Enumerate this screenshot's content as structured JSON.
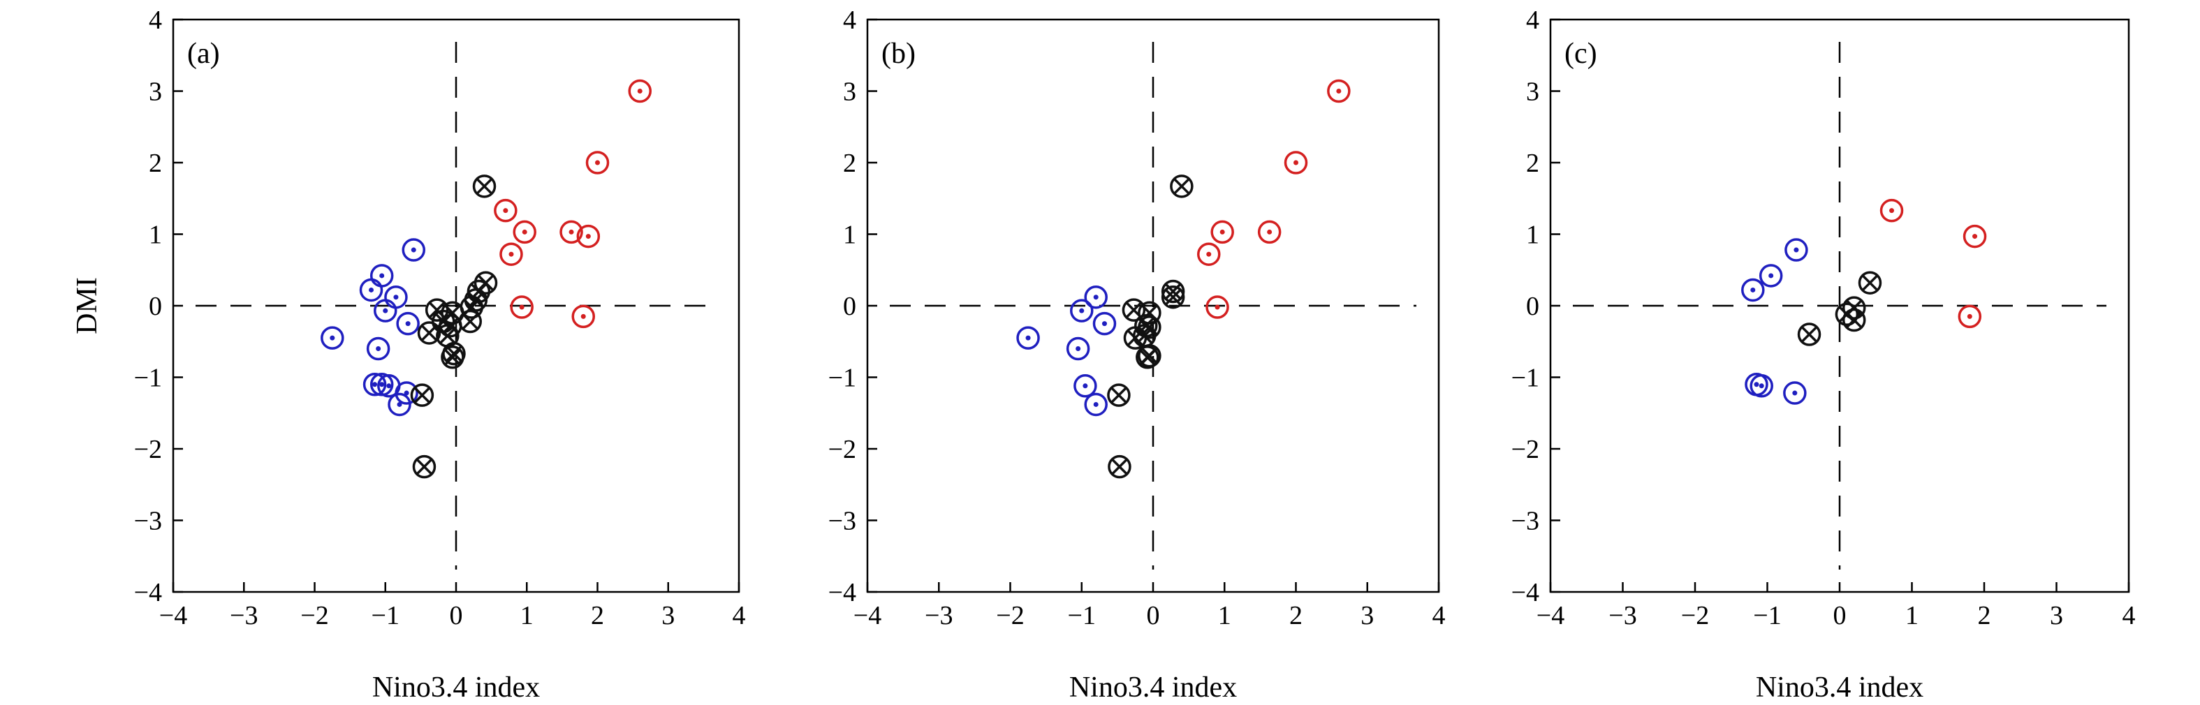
{
  "chart_data": [
    {
      "type": "scatter",
      "panel_label": "(a)",
      "xlabel": "Nino3.4 index",
      "ylabel": "DMI",
      "xlim": [
        -4,
        4
      ],
      "ylim": [
        -4,
        4
      ],
      "xticks": [
        "−4",
        "−3",
        "−2",
        "−1",
        "0",
        "1",
        "2",
        "3",
        "4"
      ],
      "yticks": [
        "−4",
        "−3",
        "−2",
        "−1",
        "0",
        "1",
        "2",
        "3",
        "4"
      ],
      "grid": false,
      "reference_lines": {
        "x": 0,
        "y": 0,
        "style": "dashed"
      },
      "series": [
        {
          "marker": "circle-dot",
          "color": "#d42020",
          "points": [
            [
              2.6,
              3.0
            ],
            [
              2.0,
              2.0
            ],
            [
              0.7,
              1.33
            ],
            [
              0.97,
              1.03
            ],
            [
              1.63,
              1.03
            ],
            [
              1.87,
              0.97
            ],
            [
              0.78,
              0.72
            ],
            [
              0.93,
              -0.02
            ],
            [
              1.8,
              -0.15
            ]
          ]
        },
        {
          "marker": "circle-dot",
          "color": "#1f1fc0",
          "points": [
            [
              -0.6,
              0.78
            ],
            [
              -1.05,
              0.42
            ],
            [
              -1.2,
              0.22
            ],
            [
              -0.85,
              0.12
            ],
            [
              -1.0,
              -0.07
            ],
            [
              -0.68,
              -0.25
            ],
            [
              -1.75,
              -0.45
            ],
            [
              -1.1,
              -0.6
            ],
            [
              -1.15,
              -1.1
            ],
            [
              -1.05,
              -1.1
            ],
            [
              -0.95,
              -1.12
            ],
            [
              -0.7,
              -1.22
            ],
            [
              -0.8,
              -1.38
            ]
          ]
        },
        {
          "marker": "circle-x",
          "color": "#111111",
          "points": [
            [
              0.4,
              1.67
            ],
            [
              0.42,
              0.32
            ],
            [
              0.32,
              0.2
            ],
            [
              0.28,
              0.08
            ],
            [
              0.22,
              -0.02
            ],
            [
              -0.27,
              -0.06
            ],
            [
              -0.05,
              -0.1
            ],
            [
              -0.18,
              -0.22
            ],
            [
              0.2,
              -0.22
            ],
            [
              -0.08,
              -0.28
            ],
            [
              -0.38,
              -0.38
            ],
            [
              -0.12,
              -0.42
            ],
            [
              -0.03,
              -0.67
            ],
            [
              -0.05,
              -0.72
            ],
            [
              -0.48,
              -1.25
            ],
            [
              -0.45,
              -2.25
            ]
          ]
        }
      ]
    },
    {
      "type": "scatter",
      "panel_label": "(b)",
      "xlabel": "Nino3.4 index",
      "ylabel": "",
      "xlim": [
        -4,
        4
      ],
      "ylim": [
        -4,
        4
      ],
      "xticks": [
        "−4",
        "−3",
        "−2",
        "−1",
        "0",
        "1",
        "2",
        "3",
        "4"
      ],
      "yticks": [
        "−4",
        "−3",
        "−2",
        "−1",
        "0",
        "1",
        "2",
        "3",
        "4"
      ],
      "grid": false,
      "reference_lines": {
        "x": 0,
        "y": 0,
        "style": "dashed"
      },
      "series": [
        {
          "marker": "circle-dot",
          "color": "#d42020",
          "points": [
            [
              2.6,
              3.0
            ],
            [
              2.0,
              2.0
            ],
            [
              0.97,
              1.03
            ],
            [
              1.63,
              1.03
            ],
            [
              0.78,
              0.72
            ],
            [
              0.9,
              -0.02
            ]
          ]
        },
        {
          "marker": "circle-dot",
          "color": "#1f1fc0",
          "points": [
            [
              -0.8,
              0.12
            ],
            [
              -1.0,
              -0.07
            ],
            [
              -0.68,
              -0.25
            ],
            [
              -1.75,
              -0.45
            ],
            [
              -1.05,
              -0.6
            ],
            [
              -0.95,
              -1.12
            ],
            [
              -0.8,
              -1.38
            ]
          ]
        },
        {
          "marker": "circle-x",
          "color": "#111111",
          "points": [
            [
              0.4,
              1.67
            ],
            [
              0.28,
              0.2
            ],
            [
              0.28,
              0.12
            ],
            [
              -0.27,
              -0.06
            ],
            [
              -0.05,
              -0.1
            ],
            [
              -0.1,
              -0.28
            ],
            [
              -0.05,
              -0.3
            ],
            [
              -0.25,
              -0.45
            ],
            [
              -0.12,
              -0.42
            ],
            [
              -0.05,
              -0.7
            ],
            [
              -0.08,
              -0.72
            ],
            [
              -0.48,
              -1.25
            ],
            [
              -0.47,
              -2.25
            ]
          ]
        }
      ]
    },
    {
      "type": "scatter",
      "panel_label": "(c)",
      "xlabel": "Nino3.4 index",
      "ylabel": "",
      "xlim": [
        -4,
        4
      ],
      "ylim": [
        -4,
        4
      ],
      "xticks": [
        "−4",
        "−3",
        "−2",
        "−1",
        "0",
        "1",
        "2",
        "3",
        "4"
      ],
      "yticks": [
        "−4",
        "−3",
        "−2",
        "−1",
        "0",
        "1",
        "2",
        "3",
        "4"
      ],
      "grid": false,
      "reference_lines": {
        "x": 0,
        "y": 0,
        "style": "dashed"
      },
      "series": [
        {
          "marker": "circle-dot",
          "color": "#d42020",
          "points": [
            [
              0.72,
              1.33
            ],
            [
              1.87,
              0.97
            ],
            [
              1.8,
              -0.15
            ]
          ]
        },
        {
          "marker": "circle-dot",
          "color": "#1f1fc0",
          "points": [
            [
              -0.6,
              0.78
            ],
            [
              -0.95,
              0.42
            ],
            [
              -1.2,
              0.22
            ],
            [
              -1.15,
              -1.1
            ],
            [
              -1.08,
              -1.12
            ],
            [
              -0.62,
              -1.22
            ]
          ]
        },
        {
          "marker": "circle-x",
          "color": "#111111",
          "points": [
            [
              0.42,
              0.32
            ],
            [
              0.2,
              -0.03
            ],
            [
              0.1,
              -0.12
            ],
            [
              0.2,
              -0.2
            ],
            [
              -0.42,
              -0.4
            ]
          ]
        }
      ]
    }
  ]
}
